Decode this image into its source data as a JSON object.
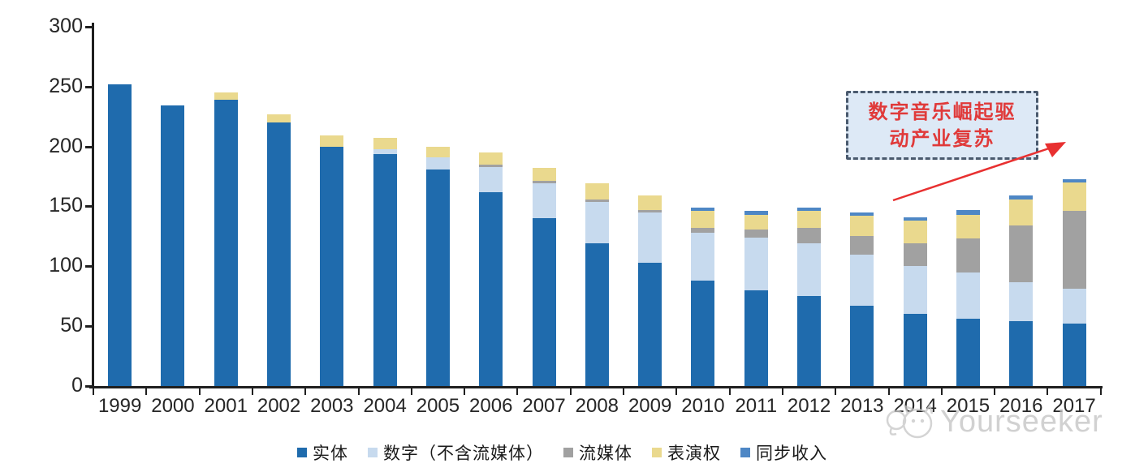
{
  "chart_data": {
    "type": "bar",
    "stacked": true,
    "title": "",
    "xlabel": "",
    "ylabel": "",
    "categories": [
      "1999",
      "2000",
      "2001",
      "2002",
      "2003",
      "2004",
      "2005",
      "2006",
      "2007",
      "2008",
      "2009",
      "2010",
      "2011",
      "2012",
      "2013",
      "2014",
      "2015",
      "2016",
      "2017"
    ],
    "series": [
      {
        "name": "实体",
        "color": "#1f6bad",
        "values": [
          252,
          234,
          239,
          220,
          200,
          194,
          181,
          162,
          140,
          119,
          103,
          88,
          80,
          75,
          67,
          60,
          56,
          54,
          52
        ]
      },
      {
        "name": "数字（不含流媒体）",
        "color": "#c7daee",
        "values": [
          0,
          0,
          0,
          0,
          0,
          4,
          10,
          21,
          29,
          35,
          42,
          40,
          44,
          44,
          43,
          40,
          39,
          33,
          29
        ]
      },
      {
        "name": "流媒体",
        "color": "#a1a1a1",
        "values": [
          0,
          0,
          0,
          0,
          0,
          0,
          0,
          2,
          2,
          2,
          2,
          4,
          7,
          13,
          15,
          19,
          28,
          47,
          65
        ]
      },
      {
        "name": "表演权",
        "color": "#ead98e",
        "values": [
          0,
          0,
          6,
          7,
          9,
          9,
          9,
          10,
          11,
          13,
          12,
          14,
          12,
          14,
          17,
          19,
          20,
          22,
          24
        ]
      },
      {
        "name": "同步收入",
        "color": "#4e87c5",
        "values": [
          0,
          0,
          0,
          0,
          0,
          0,
          0,
          0,
          0,
          0,
          0,
          3,
          3,
          3,
          3,
          3,
          4,
          3,
          3
        ]
      }
    ],
    "ylim": [
      0,
      300
    ],
    "yticks": [
      0,
      50,
      100,
      150,
      200,
      250,
      300
    ],
    "grid": false,
    "legend_position": "bottom"
  },
  "annotation": {
    "line1": "数字音乐崛起驱",
    "line2": "动产业复苏",
    "fill_color": "#dde9f6",
    "border_color": "#4a5a6e",
    "text_color": "#e03a3a",
    "arrow_color": "#e83030"
  },
  "watermark": {
    "text": "Yourseeker",
    "logo": "cat-face-icon",
    "color": "#c2c2c2"
  }
}
